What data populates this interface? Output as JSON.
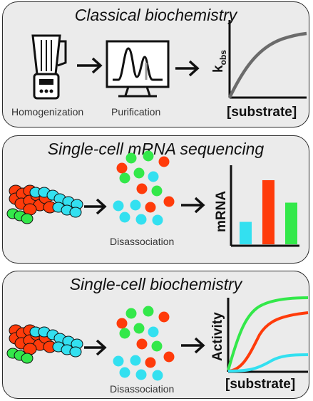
{
  "panels": [
    {
      "title": "Classical biochemistry",
      "steps": [
        "Homogenization",
        "Purification"
      ],
      "ylabel_main": "k",
      "ylabel_sub": "obs",
      "xlabel": "[substrate]"
    },
    {
      "title": "Single-cell mRNA sequencing",
      "steps": [
        "Disassociation"
      ],
      "ylabel": "mRNA",
      "bars": [
        {
          "color": "#33e0f0",
          "value": 0.35
        },
        {
          "color": "#ff3b0a",
          "value": 1.0
        },
        {
          "color": "#33e84a",
          "value": 0.65
        }
      ]
    },
    {
      "title": "Single-cell biochemistry",
      "steps": [
        "Disassociation"
      ],
      "ylabel": "Activity",
      "xlabel": "[substrate]"
    }
  ],
  "colors": {
    "red": "#ff3b0a",
    "cyan": "#33e0f0",
    "green": "#33e84a",
    "gray": "#6b6b6b"
  },
  "icons": [
    "blender-icon",
    "monitor-chromatogram-icon",
    "arrow-icon",
    "pancreas-cells-icon",
    "dissociated-cells-icon"
  ]
}
